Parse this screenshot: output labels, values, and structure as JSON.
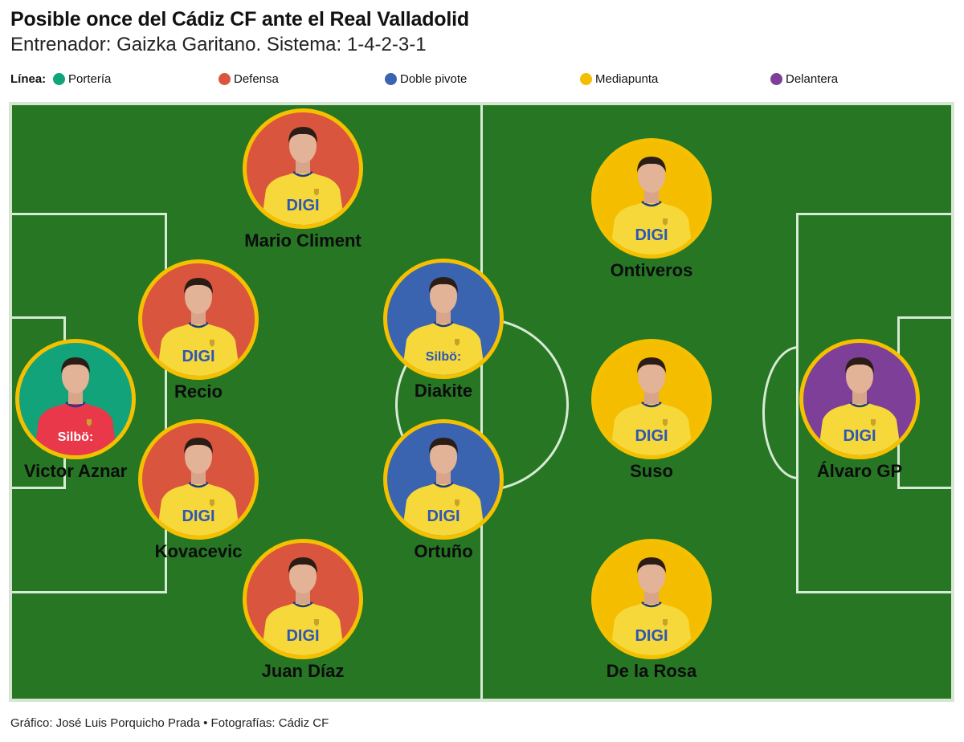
{
  "header": {
    "title": "Posible once del Cádiz CF ante el Real Valladolid",
    "subtitle": "Entrenador: Gaizka Garitano. Sistema: 1-4-2-3-1"
  },
  "legend": {
    "lead": "Línea:",
    "items": [
      {
        "label": "Portería",
        "color": "#12a37a"
      },
      {
        "label": "Defensa",
        "color": "#d9553e"
      },
      {
        "label": "Doble pivote",
        "color": "#3a64b0"
      },
      {
        "label": "Mediapunta",
        "color": "#f5bd00"
      },
      {
        "label": "Delantera",
        "color": "#7e3f98"
      }
    ]
  },
  "pitch": {
    "grass_color": "#267624",
    "line_color": "#d7ebd4",
    "ring_color": "#f5c000"
  },
  "players": [
    {
      "name": "Victor Aznar",
      "line": "Portería",
      "bg": "#12a37a",
      "shirt": "#e8384a",
      "sponsor": "Silbö:"
    },
    {
      "name": "Mario Climent",
      "line": "Defensa",
      "bg": "#d9553e",
      "shirt": "#f6d83a",
      "sponsor": "DIGI"
    },
    {
      "name": "Recio",
      "line": "Defensa",
      "bg": "#d9553e",
      "shirt": "#f6d83a",
      "sponsor": "DIGI"
    },
    {
      "name": "Kovacevic",
      "line": "Defensa",
      "bg": "#d9553e",
      "shirt": "#f6d83a",
      "sponsor": "DIGI"
    },
    {
      "name": "Juan Díaz",
      "line": "Defensa",
      "bg": "#d9553e",
      "shirt": "#f6d83a",
      "sponsor": "DIGI"
    },
    {
      "name": "Diakite",
      "line": "Doble pivote",
      "bg": "#3a64b0",
      "shirt": "#f6d83a",
      "sponsor": "Silbö:"
    },
    {
      "name": "Ortuño",
      "line": "Doble pivote",
      "bg": "#3a64b0",
      "shirt": "#f6d83a",
      "sponsor": "DIGI"
    },
    {
      "name": "Ontiveros",
      "line": "Mediapunta",
      "bg": "#f5bd00",
      "shirt": "#f6d83a",
      "sponsor": "DIGI"
    },
    {
      "name": "Suso",
      "line": "Mediapunta",
      "bg": "#f5bd00",
      "shirt": "#f6d83a",
      "sponsor": "DIGI"
    },
    {
      "name": "De la Rosa",
      "line": "Mediapunta",
      "bg": "#f5bd00",
      "shirt": "#f6d83a",
      "sponsor": "DIGI"
    },
    {
      "name": "Álvaro GP",
      "line": "Delantera",
      "bg": "#7e3f98",
      "shirt": "#f6d83a",
      "sponsor": "DIGI"
    }
  ],
  "footer": "Gráfico: José Luis Porquicho Prada • Fotografías: Cádiz CF"
}
